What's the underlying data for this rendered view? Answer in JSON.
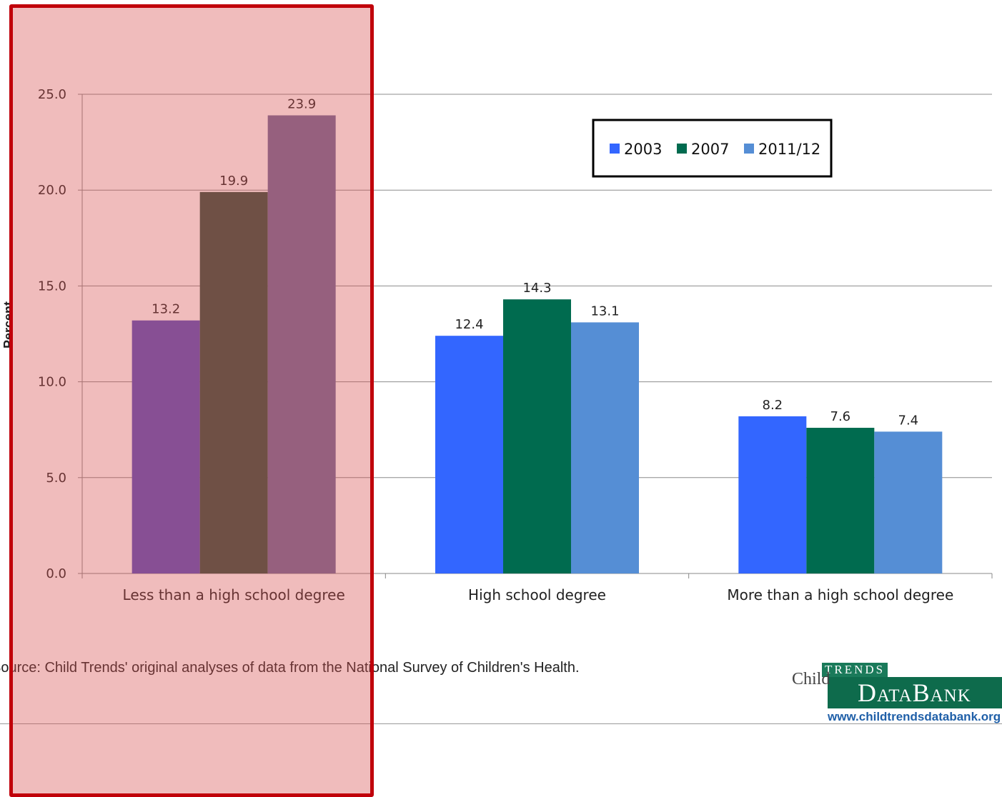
{
  "chart_data": {
    "type": "bar",
    "ylabel": "Percent",
    "ylim": [
      0,
      25
    ],
    "yticks": [
      "0.0",
      "5.0",
      "10.0",
      "15.0",
      "20.0",
      "25.0"
    ],
    "categories": [
      "Less than a high school degree",
      "High school degree",
      "More than a high school degree"
    ],
    "series": [
      {
        "name": "2003",
        "values": [
          13.2,
          12.4,
          8.2
        ],
        "color": "#3366ff"
      },
      {
        "name": "2007",
        "values": [
          19.9,
          14.3,
          7.6
        ],
        "color": "#006b4f"
      },
      {
        "name": "2011/12",
        "values": [
          23.9,
          13.1,
          7.4
        ],
        "color": "#558ed5"
      }
    ],
    "grid": true,
    "legend_position": "top-right"
  },
  "source_text": "Source: Child Trends' original analyses of data from the National Survey of Children's Health.",
  "logo": {
    "child": "Child",
    "trends": "TRENDS",
    "databank": "DataBank",
    "url": "www.childtrendsdatabank.org"
  },
  "highlight": {
    "category": "Less than a high school degree",
    "color": "#c0000a"
  }
}
